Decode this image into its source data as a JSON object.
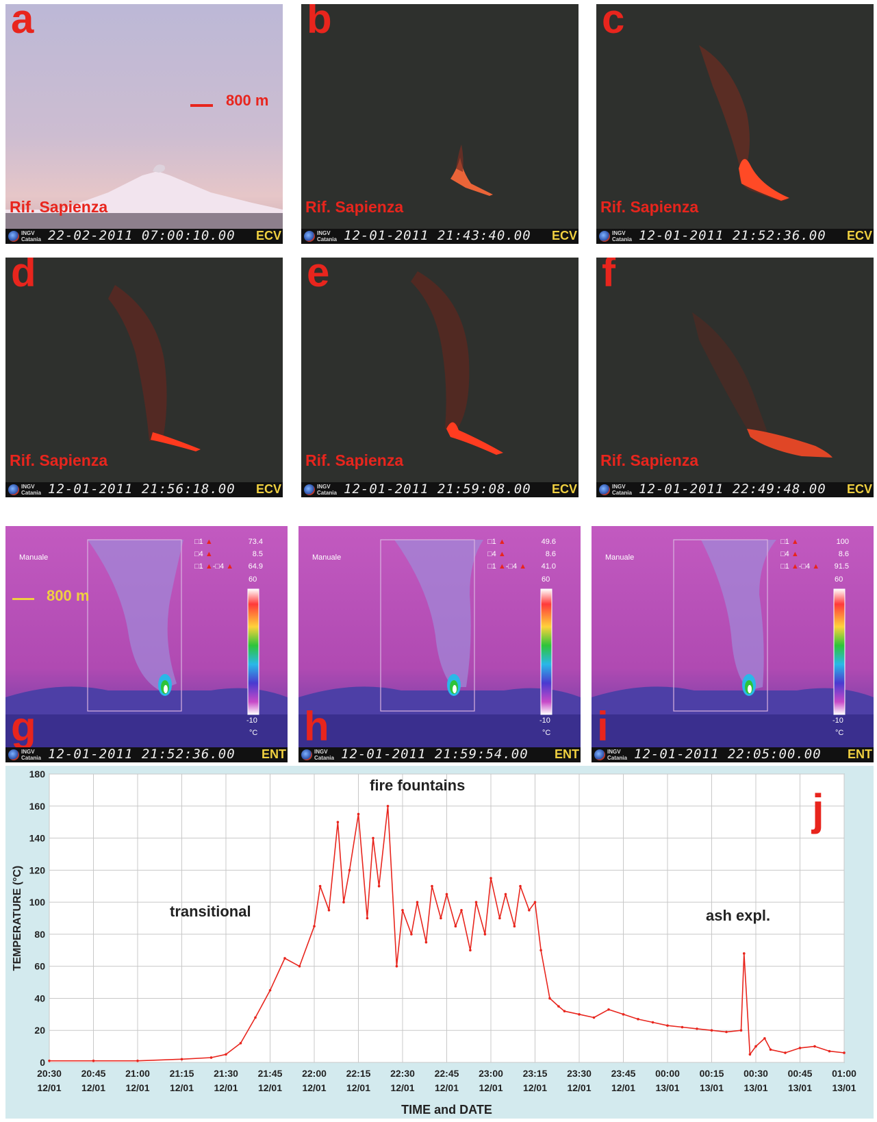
{
  "photos": [
    {
      "letter": "a",
      "place": "Rif. Sapienza",
      "org_line1": "INGV",
      "org_line2": "Catania",
      "timestamp": "22-02-2011 07:00:10.00",
      "camera": "ECV",
      "scale_label": "800 m"
    },
    {
      "letter": "b",
      "place": "Rif. Sapienza",
      "org_line1": "INGV",
      "org_line2": "Catania",
      "timestamp": "12-01-2011 21:43:40.00",
      "camera": "ECV"
    },
    {
      "letter": "c",
      "place": "Rif. Sapienza",
      "org_line1": "INGV",
      "org_line2": "Catania",
      "timestamp": "12-01-2011 21:52:36.00",
      "camera": "ECV"
    },
    {
      "letter": "d",
      "place": "Rif. Sapienza",
      "org_line1": "INGV",
      "org_line2": "Catania",
      "timestamp": "12-01-2011 21:56:18.00",
      "camera": "ECV"
    },
    {
      "letter": "e",
      "place": "Rif. Sapienza",
      "org_line1": "INGV",
      "org_line2": "Catania",
      "timestamp": "12-01-2011 21:59:08.00",
      "camera": "ECV"
    },
    {
      "letter": "f",
      "place": "Rif. Sapienza",
      "org_line1": "INGV",
      "org_line2": "Catania",
      "timestamp": "12-01-2011 22:49:48.00",
      "camera": "ECV"
    }
  ],
  "thermal": [
    {
      "letter": "g",
      "mode": "Manuale",
      "r1": "73.4",
      "r4": "8.5",
      "rdiff": "64.9",
      "scale_max": "60",
      "scale_min": "-10",
      "unit": "°C",
      "org_line1": "INGV",
      "org_line2": "Catania",
      "timestamp": "12-01-2011 21:52:36.00",
      "camera": "ENT",
      "scale_label": "800 m"
    },
    {
      "letter": "h",
      "mode": "Manuale",
      "r1": "49.6",
      "r4": "8.6",
      "rdiff": "41.0",
      "scale_max": "60",
      "scale_min": "-10",
      "unit": "°C",
      "org_line1": "INGV",
      "org_line2": "Catania",
      "timestamp": "12-01-2011 21:59:54.00",
      "camera": "ENT"
    },
    {
      "letter": "i",
      "mode": "Manuale",
      "r1": "100",
      "r4": "8.6",
      "rdiff": "91.5",
      "scale_max": "60",
      "scale_min": "-10",
      "unit": "°C",
      "org_line1": "INGV",
      "org_line2": "Catania",
      "timestamp": "12-01-2011 22:05:00.00",
      "camera": "ENT"
    }
  ],
  "thermal_labels": {
    "box1": "□1",
    "box4": "□4",
    "diff_a": "□1",
    "diff_dash": "-",
    "diff_b": "□4"
  },
  "chart_data": {
    "type": "line",
    "letter": "j",
    "ylabel": "TEMPERATURE (°C)",
    "xlabel": "TIME and DATE",
    "ylim": [
      0,
      180
    ],
    "yticks": [
      "0",
      "20",
      "40",
      "60",
      "80",
      "100",
      "120",
      "140",
      "160",
      "180"
    ],
    "xticks": [
      {
        "time": "20:30",
        "date": "12/01"
      },
      {
        "time": "20:45",
        "date": "12/01"
      },
      {
        "time": "21:00",
        "date": "12/01"
      },
      {
        "time": "21:15",
        "date": "12/01"
      },
      {
        "time": "21:30",
        "date": "12/01"
      },
      {
        "time": "21:45",
        "date": "12/01"
      },
      {
        "time": "22:00",
        "date": "12/01"
      },
      {
        "time": "22:15",
        "date": "12/01"
      },
      {
        "time": "22:30",
        "date": "12/01"
      },
      {
        "time": "22:45",
        "date": "12/01"
      },
      {
        "time": "23:00",
        "date": "12/01"
      },
      {
        "time": "23:15",
        "date": "12/01"
      },
      {
        "time": "23:30",
        "date": "12/01"
      },
      {
        "time": "23:45",
        "date": "12/01"
      },
      {
        "time": "00:00",
        "date": "13/01"
      },
      {
        "time": "00:15",
        "date": "13/01"
      },
      {
        "time": "00:30",
        "date": "13/01"
      },
      {
        "time": "00:45",
        "date": "13/01"
      },
      {
        "time": "01:00",
        "date": "13/01"
      }
    ],
    "annotations": [
      "transitional",
      "fire fountains",
      "ash expl."
    ],
    "line_color": "#e8251d",
    "grid": true,
    "series": [
      {
        "x": [
          "20:30",
          "20:45",
          "21:00",
          "21:15",
          "21:25",
          "21:30",
          "21:35",
          "21:40",
          "21:45",
          "21:50",
          "21:55",
          "22:00",
          "22:02",
          "22:05",
          "22:08",
          "22:10",
          "22:12",
          "22:15",
          "22:18",
          "22:20",
          "22:22",
          "22:25",
          "22:28",
          "22:30",
          "22:33",
          "22:35",
          "22:38",
          "22:40",
          "22:43",
          "22:45",
          "22:48",
          "22:50",
          "22:53",
          "22:55",
          "22:58",
          "23:00",
          "23:03",
          "23:05",
          "23:08",
          "23:10",
          "23:13",
          "23:15",
          "23:17",
          "23:20",
          "23:23",
          "23:25",
          "23:30",
          "23:35",
          "23:40",
          "23:45",
          "23:50",
          "23:55",
          "00:00",
          "00:05",
          "00:10",
          "00:15",
          "00:20",
          "00:25",
          "00:26",
          "00:28",
          "00:30",
          "00:33",
          "00:35",
          "00:40",
          "00:45",
          "00:50",
          "00:55",
          "01:00"
        ],
        "y": [
          1,
          1,
          1,
          2,
          3,
          5,
          12,
          28,
          45,
          65,
          60,
          85,
          110,
          95,
          150,
          100,
          120,
          155,
          90,
          140,
          110,
          160,
          60,
          95,
          80,
          100,
          75,
          110,
          90,
          105,
          85,
          95,
          70,
          100,
          80,
          115,
          90,
          105,
          85,
          110,
          95,
          100,
          70,
          40,
          35,
          32,
          30,
          28,
          33,
          30,
          27,
          25,
          23,
          22,
          21,
          20,
          19,
          20,
          68,
          5,
          10,
          15,
          8,
          6,
          9,
          10,
          7,
          6
        ]
      }
    ]
  }
}
